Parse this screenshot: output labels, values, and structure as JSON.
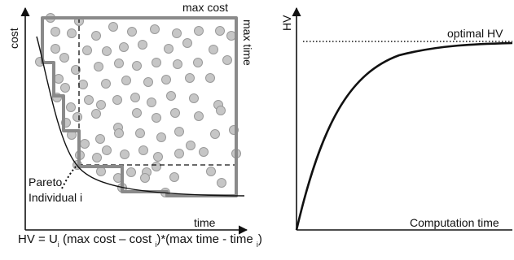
{
  "left_panel": {
    "axis_y_label": "cost",
    "axis_x_label": "time",
    "label_max_cost": "max cost",
    "label_max_time": "max time",
    "label_pareto": "Pareto",
    "label_individual": "Individual i"
  },
  "right_panel": {
    "axis_y_label": "HV",
    "axis_x_label": "Computation time",
    "label_optimal": "optimal HV"
  },
  "formula": {
    "prefix": "HV = ",
    "union_symbol": "U",
    "union_sub": "i",
    "part1": "(max cost – cost ",
    "sub1": "i",
    "part2": ")*(max time - time ",
    "sub2": "i",
    "part3": ")"
  },
  "colors": {
    "axis": "#111111",
    "point_fill": "#c6c6c6",
    "point_stroke": "#9a9a9a",
    "hv_box": "#888888",
    "curve": "#111111"
  }
}
